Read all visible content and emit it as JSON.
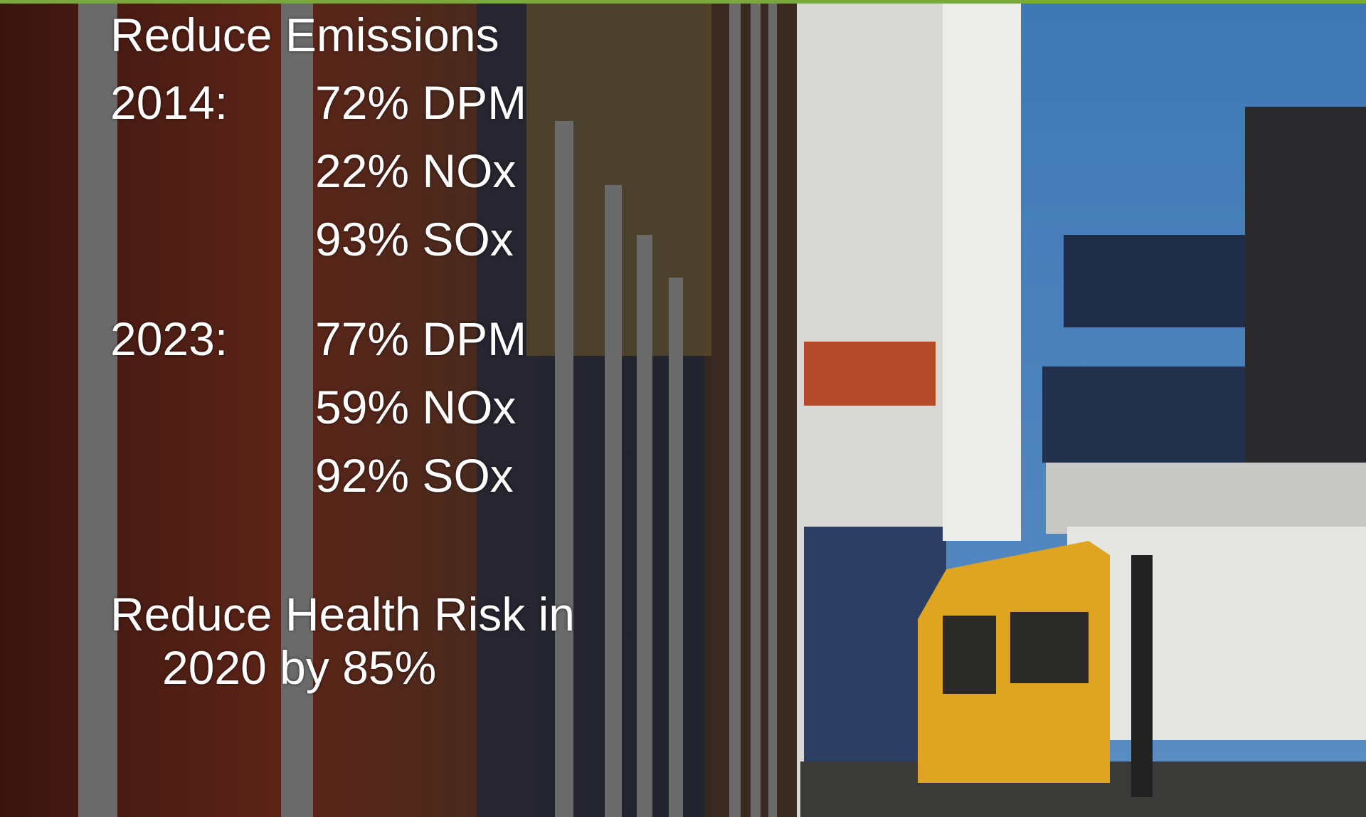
{
  "slide": {
    "title": "Reduce Emissions",
    "groups": [
      {
        "year": "2014:",
        "items": [
          "72% DPM",
          "22% NOx",
          "93% SOx"
        ]
      },
      {
        "year": "2023:",
        "items": [
          "77% DPM",
          "59% NOx",
          "92% SOx"
        ]
      }
    ],
    "footer": [
      "Reduce Health Risk in",
      "2020 by 85%"
    ]
  }
}
